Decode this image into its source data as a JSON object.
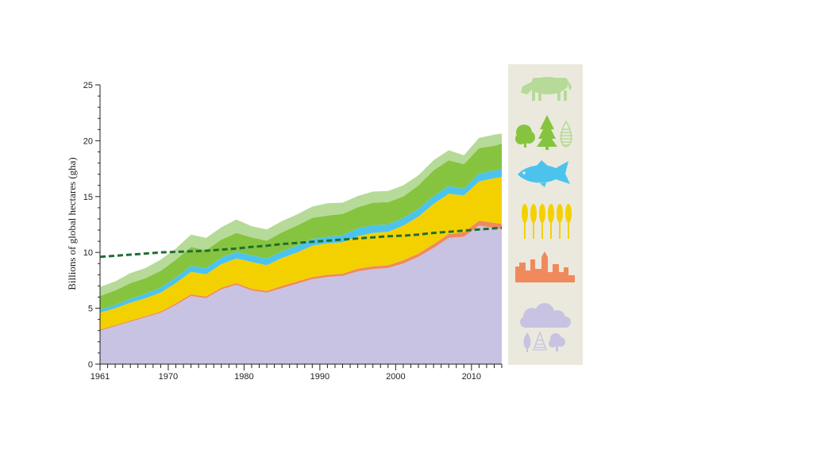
{
  "chart_data": {
    "type": "area",
    "title": "",
    "xlabel": "",
    "ylabel": "Billions of global hectares (gha)",
    "xlim": [
      1961,
      2014
    ],
    "ylim": [
      0,
      25
    ],
    "x_ticks": [
      1961,
      1970,
      1980,
      1990,
      2000,
      2010
    ],
    "y_ticks": [
      0,
      5,
      10,
      15,
      20,
      25
    ],
    "stacked": true,
    "grid": false,
    "legend_placement": "right",
    "x": [
      1961,
      1963,
      1965,
      1967,
      1969,
      1971,
      1973,
      1975,
      1977,
      1979,
      1981,
      1983,
      1985,
      1987,
      1989,
      1991,
      1993,
      1995,
      1997,
      1999,
      2001,
      2003,
      2005,
      2007,
      2009,
      2011,
      2013,
      2014
    ],
    "series": [
      {
        "color": "#c8c3e2",
        "icon": "cloud-tree-icon",
        "values": [
          3.0,
          3.4,
          3.8,
          4.2,
          4.6,
          5.3,
          6.1,
          5.9,
          6.7,
          7.1,
          6.6,
          6.4,
          6.8,
          7.2,
          7.6,
          7.8,
          7.9,
          8.3,
          8.5,
          8.6,
          9.0,
          9.6,
          10.4,
          11.3,
          11.4,
          12.4,
          12.2,
          12.1
        ]
      },
      {
        "color": "#f08a5d",
        "icon": "city-skyline-icon",
        "values": [
          0.1,
          0.1,
          0.1,
          0.1,
          0.1,
          0.15,
          0.15,
          0.15,
          0.15,
          0.15,
          0.15,
          0.15,
          0.2,
          0.2,
          0.2,
          0.2,
          0.2,
          0.25,
          0.25,
          0.25,
          0.3,
          0.3,
          0.35,
          0.35,
          0.4,
          0.45,
          0.45,
          0.45
        ]
      },
      {
        "color": "#f3d100",
        "icon": "wheat-icon",
        "values": [
          1.5,
          1.5,
          1.6,
          1.6,
          1.7,
          1.8,
          2.0,
          2.0,
          2.1,
          2.2,
          2.4,
          2.3,
          2.5,
          2.6,
          2.8,
          2.8,
          2.8,
          2.9,
          3.0,
          3.0,
          3.1,
          3.3,
          3.6,
          3.6,
          3.3,
          3.5,
          4.0,
          4.2
        ]
      },
      {
        "color": "#4cc3ec",
        "icon": "fish-icon",
        "values": [
          0.3,
          0.3,
          0.35,
          0.4,
          0.45,
          0.5,
          0.55,
          0.55,
          0.6,
          0.6,
          0.6,
          0.6,
          0.6,
          0.6,
          0.6,
          0.6,
          0.65,
          0.7,
          0.7,
          0.65,
          0.7,
          0.7,
          0.7,
          0.7,
          0.6,
          0.7,
          0.7,
          0.7
        ]
      },
      {
        "color": "#86c440",
        "icon": "trees-icon",
        "values": [
          1.2,
          1.3,
          1.4,
          1.4,
          1.5,
          1.6,
          1.7,
          1.6,
          1.6,
          1.7,
          1.6,
          1.6,
          1.7,
          1.8,
          1.9,
          1.9,
          1.9,
          1.9,
          2.0,
          2.0,
          1.9,
          2.1,
          2.3,
          2.3,
          2.2,
          2.3,
          2.2,
          2.3
        ]
      },
      {
        "color": "#b6da97",
        "icon": "cow-icon",
        "values": [
          0.8,
          0.8,
          0.9,
          0.9,
          1.0,
          1.0,
          1.1,
          1.1,
          1.1,
          1.2,
          1.0,
          1.0,
          1.0,
          1.0,
          1.0,
          1.1,
          1.0,
          1.0,
          1.0,
          1.0,
          1.0,
          0.9,
          0.9,
          0.9,
          0.8,
          0.9,
          1.0,
          0.9
        ]
      }
    ],
    "biocapacity_line": {
      "color": "#1f6e32",
      "style": "dashed",
      "values": [
        9.6,
        9.7,
        9.8,
        9.9,
        10.0,
        10.05,
        10.1,
        10.15,
        10.25,
        10.35,
        10.5,
        10.6,
        10.75,
        10.85,
        10.95,
        11.05,
        11.15,
        11.25,
        11.35,
        11.45,
        11.5,
        11.6,
        11.75,
        11.85,
        11.95,
        12.05,
        12.15,
        12.2
      ]
    }
  },
  "legend_icons": [
    "cow-icon",
    "trees-icon",
    "fish-icon",
    "wheat-icon",
    "city-skyline-icon",
    "cloud-tree-icon"
  ]
}
